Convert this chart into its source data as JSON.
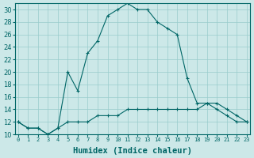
{
  "xlabel": "Humidex (Indice chaleur)",
  "bg_color": "#cce8e8",
  "grid_color": "#99cccc",
  "line_color": "#006666",
  "hours": [
    0,
    1,
    2,
    3,
    4,
    5,
    6,
    7,
    8,
    9,
    10,
    11,
    12,
    13,
    14,
    15,
    16,
    17,
    18,
    19,
    20,
    21,
    22,
    23
  ],
  "humidex": [
    12,
    11,
    11,
    10,
    11,
    20,
    17,
    23,
    25,
    29,
    30,
    31,
    30,
    30,
    28,
    27,
    26,
    19,
    15,
    15,
    14,
    13,
    12,
    12
  ],
  "temp": [
    12,
    11,
    11,
    10,
    11,
    12,
    12,
    12,
    13,
    13,
    13,
    14,
    14,
    14,
    14,
    14,
    14,
    14,
    14,
    15,
    15,
    14,
    13,
    12
  ],
  "ylim_min": 10,
  "ylim_max": 31,
  "yticks": [
    10,
    12,
    14,
    16,
    18,
    20,
    22,
    24,
    26,
    28,
    30
  ],
  "marker": "+"
}
